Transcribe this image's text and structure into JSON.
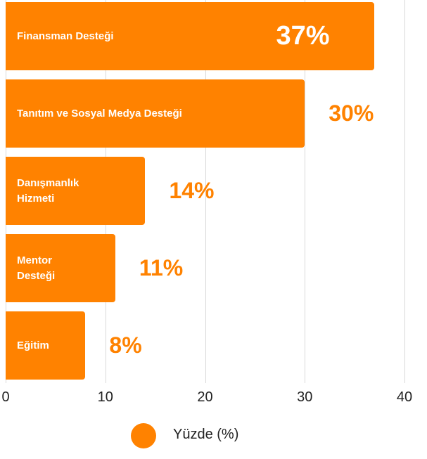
{
  "chart_data": {
    "type": "bar",
    "orientation": "horizontal",
    "categories": [
      "Finansman Desteği",
      "Tanıtım ve Sosyal Medya Desteği",
      "Danışmanlık Hizmeti",
      "Mentor Desteği",
      "Eğitim"
    ],
    "series": [
      {
        "name": "Yüzde (%)",
        "color": "#ff8200",
        "values": [
          37,
          30,
          14,
          11,
          8
        ],
        "value_labels": [
          "37%",
          "30%",
          "14%",
          "11%",
          "8%"
        ]
      }
    ],
    "xlim": [
      0,
      40
    ],
    "xticks": [
      0,
      10,
      20,
      30,
      40
    ],
    "grid": true,
    "legend": "bottom"
  }
}
